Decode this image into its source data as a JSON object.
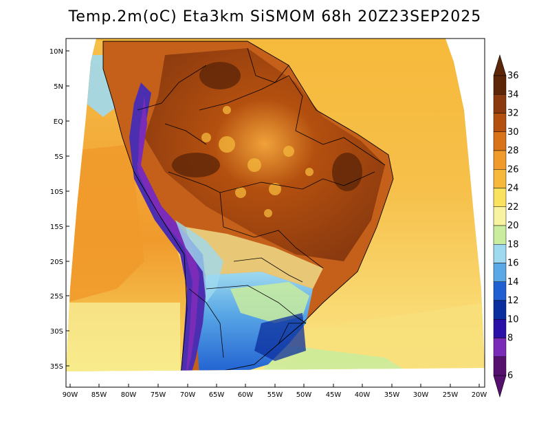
{
  "title": "Temp.2m(oC) Eta3km SiSMOM 68h 20Z23SEP2025",
  "lat_labels": [
    "10N",
    "5N",
    "EQ",
    "5S",
    "10S",
    "15S",
    "20S",
    "25S",
    "30S",
    "35S"
  ],
  "lon_labels": [
    "90W",
    "85W",
    "80W",
    "75W",
    "70W",
    "65W",
    "60W",
    "55W",
    "50W",
    "45W",
    "40W",
    "35W",
    "30W",
    "25W",
    "20W"
  ],
  "colorbar": {
    "labels": [
      "36",
      "34",
      "32",
      "30",
      "28",
      "26",
      "24",
      "22",
      "20",
      "18",
      "16",
      "14",
      "12",
      "10",
      "8",
      "6"
    ],
    "colors": [
      "#5e2608",
      "#8b3a0f",
      "#b4500f",
      "#d8731a",
      "#f09a2c",
      "#f6b93b",
      "#fbe25e",
      "#f8f3a0",
      "#c9ec9e",
      "#9fd9ef",
      "#5aa8e6",
      "#1f5fd1",
      "#0b2e9e",
      "#2a10a8",
      "#7a2bb8",
      "#56106d"
    ]
  },
  "map": {
    "ocean_colors": {
      "warm": "#f6b93b",
      "mid": "#f8d860",
      "cool": "#fbe88a"
    },
    "land_colors": {
      "hot": "#8b3a0f",
      "warm": "#c4601a",
      "andes": "#4b2fb0",
      "south": "#1f5fd1"
    }
  }
}
